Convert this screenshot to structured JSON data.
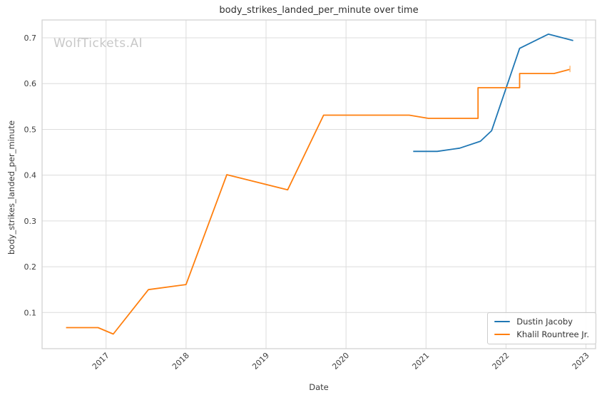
{
  "watermark": "WolfTickets.AI",
  "chart_data": {
    "type": "line",
    "title": "body_strikes_landed_per_minute over time",
    "xlabel": "Date",
    "ylabel": "body_strikes_landed_per_minute",
    "xlim": [
      2016.2,
      2023.12
    ],
    "ylim": [
      0.021,
      0.739
    ],
    "xticks": [
      2017,
      2018,
      2019,
      2020,
      2021,
      2022,
      2023
    ],
    "yticks": [
      0.1,
      0.2,
      0.3,
      0.4,
      0.5,
      0.6,
      0.7
    ],
    "grid": true,
    "legend_position": "lower right",
    "series": [
      {
        "name": "Dustin Jacoby",
        "color": "#1f77b4",
        "points": [
          [
            2020.84,
            0.452
          ],
          [
            2021.14,
            0.452
          ],
          [
            2021.42,
            0.459
          ],
          [
            2021.68,
            0.474
          ],
          [
            2021.82,
            0.497
          ],
          [
            2022.17,
            0.677
          ],
          [
            2022.53,
            0.708
          ],
          [
            2022.84,
            0.694
          ]
        ]
      },
      {
        "name": "Khalil Rountree Jr.",
        "color": "#ff7f0e",
        "points": [
          [
            2016.5,
            0.067
          ],
          [
            2016.9,
            0.067
          ],
          [
            2017.09,
            0.053
          ],
          [
            2017.53,
            0.15
          ],
          [
            2018.0,
            0.161
          ],
          [
            2018.51,
            0.401
          ],
          [
            2019.27,
            0.368
          ],
          [
            2019.72,
            0.531
          ],
          [
            2020.79,
            0.531
          ],
          [
            2021.03,
            0.524
          ],
          [
            2021.65,
            0.524
          ],
          [
            2021.65,
            0.591
          ],
          [
            2022.17,
            0.591
          ],
          [
            2022.17,
            0.622
          ],
          [
            2022.6,
            0.622
          ],
          [
            2022.8,
            0.631
          ]
        ],
        "end_marker": {
          "x": 2022.8,
          "y_low": 0.625,
          "y_high": 0.639,
          "color": "#ffbb78"
        }
      }
    ]
  }
}
